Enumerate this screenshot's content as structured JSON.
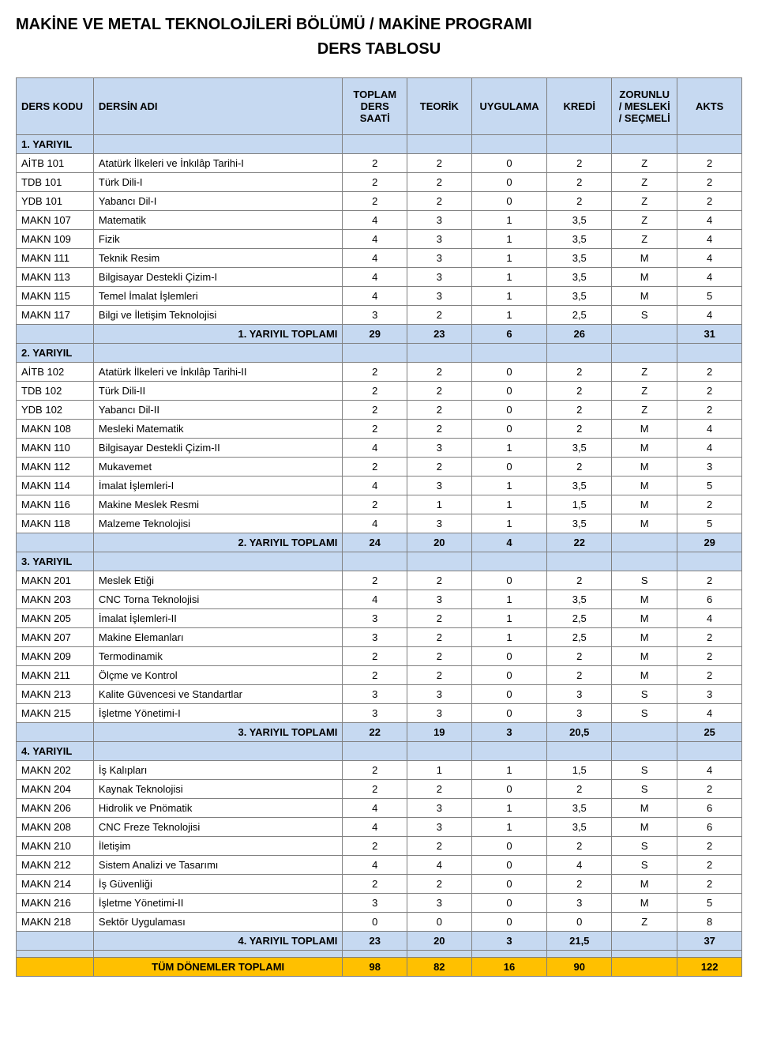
{
  "page": {
    "title": "MAKİNE VE METAL TEKNOLOJİLERİ BÖLÜMÜ / MAKİNE PROGRAMI",
    "subtitle": "DERS TABLOSU"
  },
  "colors": {
    "header_bg": "#c6d9f1",
    "grand_bg": "#ffc000",
    "border": "#808080",
    "text": "#000000"
  },
  "table": {
    "columns": [
      {
        "key": "code",
        "label": "DERS KODU"
      },
      {
        "key": "name",
        "label": "DERSİN ADI"
      },
      {
        "key": "toplam",
        "label": "TOPLAM DERS SAATİ"
      },
      {
        "key": "teorik",
        "label": "TEORİK"
      },
      {
        "key": "uygulama",
        "label": "UYGULAMA"
      },
      {
        "key": "kredi",
        "label": "KREDİ"
      },
      {
        "key": "zms",
        "label": "ZORUNLU / MESLEKİ / SEÇMELİ"
      },
      {
        "key": "akts",
        "label": "AKTS"
      }
    ],
    "rows": [
      {
        "type": "sem",
        "label": "1. YARIYIL"
      },
      {
        "type": "course",
        "code": "AİTB 101",
        "name": "Atatürk İlkeleri ve İnkılâp Tarihi-I",
        "toplam": "2",
        "teorik": "2",
        "uygulama": "0",
        "kredi": "2",
        "zms": "Z",
        "akts": "2"
      },
      {
        "type": "course",
        "code": "TDB 101",
        "name": "Türk Dili-I",
        "toplam": "2",
        "teorik": "2",
        "uygulama": "0",
        "kredi": "2",
        "zms": "Z",
        "akts": "2"
      },
      {
        "type": "course",
        "code": "YDB 101",
        "name": "Yabancı Dil-I",
        "toplam": "2",
        "teorik": "2",
        "uygulama": "0",
        "kredi": "2",
        "zms": "Z",
        "akts": "2"
      },
      {
        "type": "course",
        "code": "MAKN 107",
        "name": "Matematik",
        "toplam": "4",
        "teorik": "3",
        "uygulama": "1",
        "kredi": "3,5",
        "zms": "Z",
        "akts": "4"
      },
      {
        "type": "course",
        "code": "MAKN 109",
        "name": "Fizik",
        "toplam": "4",
        "teorik": "3",
        "uygulama": "1",
        "kredi": "3,5",
        "zms": "Z",
        "akts": "4"
      },
      {
        "type": "course",
        "code": "MAKN 111",
        "name": "Teknik Resim",
        "toplam": "4",
        "teorik": "3",
        "uygulama": "1",
        "kredi": "3,5",
        "zms": "M",
        "akts": "4"
      },
      {
        "type": "course",
        "code": "MAKN 113",
        "name": "Bilgisayar Destekli Çizim-I",
        "toplam": "4",
        "teorik": "3",
        "uygulama": "1",
        "kredi": "3,5",
        "zms": "M",
        "akts": "4"
      },
      {
        "type": "course",
        "code": "MAKN 115",
        "name": "Temel İmalat İşlemleri",
        "toplam": "4",
        "teorik": "3",
        "uygulama": "1",
        "kredi": "3,5",
        "zms": "M",
        "akts": "5"
      },
      {
        "type": "course",
        "code": "MAKN 117",
        "name": "Bilgi ve İletişim Teknolojisi",
        "toplam": "3",
        "teorik": "2",
        "uygulama": "1",
        "kredi": "2,5",
        "zms": "S",
        "akts": "4"
      },
      {
        "type": "totals",
        "label": "1. YARIYIL TOPLAMI",
        "toplam": "29",
        "teorik": "23",
        "uygulama": "6",
        "kredi": "26",
        "zms": "",
        "akts": "31"
      },
      {
        "type": "sem",
        "label": "2. YARIYIL"
      },
      {
        "type": "course",
        "code": "AİTB 102",
        "name": "Atatürk İlkeleri ve İnkılâp Tarihi-II",
        "toplam": "2",
        "teorik": "2",
        "uygulama": "0",
        "kredi": "2",
        "zms": "Z",
        "akts": "2"
      },
      {
        "type": "course",
        "code": "TDB 102",
        "name": "Türk Dili-II",
        "toplam": "2",
        "teorik": "2",
        "uygulama": "0",
        "kredi": "2",
        "zms": "Z",
        "akts": "2"
      },
      {
        "type": "course",
        "code": "YDB 102",
        "name": "Yabancı Dil-II",
        "toplam": "2",
        "teorik": "2",
        "uygulama": "0",
        "kredi": "2",
        "zms": "Z",
        "akts": "2"
      },
      {
        "type": "course",
        "code": "MAKN 108",
        "name": "Mesleki Matematik",
        "toplam": "2",
        "teorik": "2",
        "uygulama": "0",
        "kredi": "2",
        "zms": "M",
        "akts": "4"
      },
      {
        "type": "course",
        "code": "MAKN 110",
        "name": "Bilgisayar Destekli Çizim-II",
        "toplam": "4",
        "teorik": "3",
        "uygulama": "1",
        "kredi": "3,5",
        "zms": "M",
        "akts": "4"
      },
      {
        "type": "course",
        "code": "MAKN 112",
        "name": "Mukavemet",
        "toplam": "2",
        "teorik": "2",
        "uygulama": "0",
        "kredi": "2",
        "zms": "M",
        "akts": "3"
      },
      {
        "type": "course",
        "code": "MAKN 114",
        "name": "İmalat İşlemleri-I",
        "toplam": "4",
        "teorik": "3",
        "uygulama": "1",
        "kredi": "3,5",
        "zms": "M",
        "akts": "5"
      },
      {
        "type": "course",
        "code": "MAKN 116",
        "name": "Makine Meslek Resmi",
        "toplam": "2",
        "teorik": "1",
        "uygulama": "1",
        "kredi": "1,5",
        "zms": "M",
        "akts": "2"
      },
      {
        "type": "course",
        "code": "MAKN 118",
        "name": "Malzeme Teknolojisi",
        "toplam": "4",
        "teorik": "3",
        "uygulama": "1",
        "kredi": "3,5",
        "zms": "M",
        "akts": "5"
      },
      {
        "type": "totals",
        "label": "2. YARIYIL TOPLAMI",
        "toplam": "24",
        "teorik": "20",
        "uygulama": "4",
        "kredi": "22",
        "zms": "",
        "akts": "29"
      },
      {
        "type": "sem",
        "label": "3. YARIYIL"
      },
      {
        "type": "course",
        "code": "MAKN 201",
        "name": "Meslek Etiği",
        "toplam": "2",
        "teorik": "2",
        "uygulama": "0",
        "kredi": "2",
        "zms": "S",
        "akts": "2"
      },
      {
        "type": "course",
        "code": "MAKN 203",
        "name": "CNC Torna Teknolojisi",
        "toplam": "4",
        "teorik": "3",
        "uygulama": "1",
        "kredi": "3,5",
        "zms": "M",
        "akts": "6"
      },
      {
        "type": "course",
        "code": "MAKN 205",
        "name": "İmalat İşlemleri-II",
        "toplam": "3",
        "teorik": "2",
        "uygulama": "1",
        "kredi": "2,5",
        "zms": "M",
        "akts": "4"
      },
      {
        "type": "course",
        "code": "MAKN 207",
        "name": "Makine Elemanları",
        "toplam": "3",
        "teorik": "2",
        "uygulama": "1",
        "kredi": "2,5",
        "zms": "M",
        "akts": "2"
      },
      {
        "type": "course",
        "code": "MAKN 209",
        "name": "Termodinamik",
        "toplam": "2",
        "teorik": "2",
        "uygulama": "0",
        "kredi": "2",
        "zms": "M",
        "akts": "2"
      },
      {
        "type": "course",
        "code": "MAKN 211",
        "name": "Ölçme ve Kontrol",
        "toplam": "2",
        "teorik": "2",
        "uygulama": "0",
        "kredi": "2",
        "zms": "M",
        "akts": "2"
      },
      {
        "type": "course",
        "code": "MAKN 213",
        "name": "Kalite Güvencesi ve Standartlar",
        "toplam": "3",
        "teorik": "3",
        "uygulama": "0",
        "kredi": "3",
        "zms": "S",
        "akts": "3"
      },
      {
        "type": "course",
        "code": "MAKN 215",
        "name": "İşletme Yönetimi-I",
        "toplam": "3",
        "teorik": "3",
        "uygulama": "0",
        "kredi": "3",
        "zms": "S",
        "akts": "4"
      },
      {
        "type": "totals",
        "label": "3. YARIYIL TOPLAMI",
        "toplam": "22",
        "teorik": "19",
        "uygulama": "3",
        "kredi": "20,5",
        "zms": "",
        "akts": "25"
      },
      {
        "type": "sem",
        "label": "4. YARIYIL"
      },
      {
        "type": "course",
        "code": "MAKN 202",
        "name": "İş Kalıpları",
        "toplam": "2",
        "teorik": "1",
        "uygulama": "1",
        "kredi": "1,5",
        "zms": "S",
        "akts": "4"
      },
      {
        "type": "course",
        "code": "MAKN 204",
        "name": "Kaynak Teknolojisi",
        "toplam": "2",
        "teorik": "2",
        "uygulama": "0",
        "kredi": "2",
        "zms": "S",
        "akts": "2"
      },
      {
        "type": "course",
        "code": "MAKN 206",
        "name": "Hidrolik ve Pnömatik",
        "toplam": "4",
        "teorik": "3",
        "uygulama": "1",
        "kredi": "3,5",
        "zms": "M",
        "akts": "6"
      },
      {
        "type": "course",
        "code": "MAKN 208",
        "name": "CNC Freze Teknolojisi",
        "toplam": "4",
        "teorik": "3",
        "uygulama": "1",
        "kredi": "3,5",
        "zms": "M",
        "akts": "6"
      },
      {
        "type": "course",
        "code": "MAKN 210",
        "name": "İletişim",
        "toplam": "2",
        "teorik": "2",
        "uygulama": "0",
        "kredi": "2",
        "zms": "S",
        "akts": "2"
      },
      {
        "type": "course",
        "code": "MAKN 212",
        "name": "Sistem Analizi ve Tasarımı",
        "toplam": "4",
        "teorik": "4",
        "uygulama": "0",
        "kredi": "4",
        "zms": "S",
        "akts": "2"
      },
      {
        "type": "course",
        "code": "MAKN 214",
        "name": "İş Güvenliği",
        "toplam": "2",
        "teorik": "2",
        "uygulama": "0",
        "kredi": "2",
        "zms": "M",
        "akts": "2"
      },
      {
        "type": "course",
        "code": "MAKN 216",
        "name": "İşletme Yönetimi-II",
        "toplam": "3",
        "teorik": "3",
        "uygulama": "0",
        "kredi": "3",
        "zms": "M",
        "akts": "5"
      },
      {
        "type": "course",
        "code": "MAKN 218",
        "name": "Sektör Uygulaması",
        "toplam": "0",
        "teorik": "0",
        "uygulama": "0",
        "kredi": "0",
        "zms": "Z",
        "akts": "8"
      },
      {
        "type": "totals",
        "label": "4. YARIYIL TOPLAMI",
        "toplam": "23",
        "teorik": "20",
        "uygulama": "3",
        "kredi": "21,5",
        "zms": "",
        "akts": "37"
      },
      {
        "type": "spacer"
      },
      {
        "type": "grand",
        "label": "TÜM DÖNEMLER TOPLAMI",
        "toplam": "98",
        "teorik": "82",
        "uygulama": "16",
        "kredi": "90",
        "zms": "",
        "akts": "122"
      }
    ]
  }
}
